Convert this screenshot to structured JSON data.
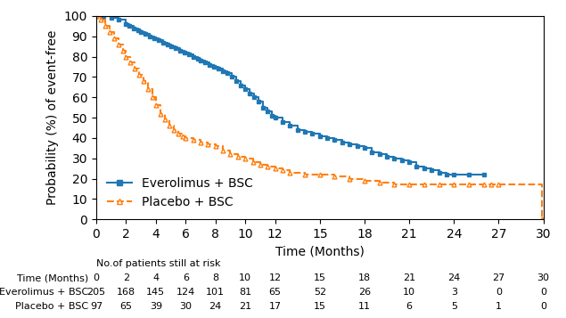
{
  "chart_data": {
    "type": "step",
    "xlabel": "Time (Months)",
    "ylabel": "Probability (%) of event-free",
    "xlim": [
      0,
      30
    ],
    "ylim": [
      0,
      100
    ],
    "xticks": [
      0,
      2,
      4,
      6,
      8,
      10,
      12,
      15,
      18,
      21,
      24,
      27,
      30
    ],
    "yticks": [
      0,
      10,
      20,
      30,
      40,
      50,
      60,
      70,
      80,
      90,
      100
    ],
    "legend": "lower left",
    "series": [
      {
        "name": "Everolimus + BSC",
        "marker": "square",
        "line_style": "solid",
        "x": [
          0,
          0.5,
          1.0,
          1.5,
          2.0,
          2.2,
          2.5,
          2.8,
          3.0,
          3.3,
          3.6,
          3.9,
          4.2,
          4.5,
          4.8,
          5.0,
          5.3,
          5.6,
          5.9,
          6.2,
          6.5,
          6.8,
          7.0,
          7.3,
          7.6,
          7.9,
          8.2,
          8.5,
          8.8,
          9.1,
          9.4,
          9.7,
          10.0,
          10.3,
          10.6,
          10.9,
          11.2,
          11.5,
          11.8,
          12.0,
          12.5,
          13.0,
          13.5,
          14.0,
          14.5,
          15.0,
          15.5,
          16.0,
          16.5,
          17.0,
          17.5,
          18.0,
          18.5,
          19.0,
          19.5,
          20.0,
          20.5,
          21.0,
          21.5,
          22.0,
          22.5,
          23.0,
          23.5,
          24.0,
          25.0,
          26.0
        ],
        "values": [
          100,
          100,
          99,
          98,
          96,
          95,
          94,
          93,
          92,
          91,
          90,
          89,
          88,
          87,
          86,
          85,
          84,
          83,
          82,
          81,
          80,
          79,
          78,
          77,
          76,
          75,
          74,
          73,
          72,
          70,
          68,
          66,
          64,
          62,
          60,
          58,
          55,
          53,
          51,
          50,
          48,
          46,
          44,
          43,
          42,
          41,
          40,
          39,
          38,
          37,
          36,
          35,
          33,
          32,
          31,
          30,
          29,
          28,
          26,
          25,
          24,
          23,
          22,
          22,
          22,
          22
        ]
      },
      {
        "name": "Placebo + BSC",
        "marker": "open triangle",
        "line_style": "dashed",
        "x": [
          0,
          0.3,
          0.6,
          0.9,
          1.2,
          1.5,
          1.8,
          2.0,
          2.3,
          2.6,
          2.9,
          3.2,
          3.5,
          3.8,
          4.0,
          4.3,
          4.6,
          4.9,
          5.2,
          5.5,
          5.8,
          6.0,
          6.5,
          7.0,
          7.5,
          8.0,
          8.5,
          9.0,
          9.5,
          10.0,
          10.5,
          11.0,
          11.5,
          12.0,
          12.5,
          13.0,
          14.0,
          15.0,
          16.0,
          17.0,
          18.0,
          19.0,
          20.0,
          21.0,
          22.0,
          23.0,
          24.0,
          25.0,
          26.0,
          26.5,
          27.0,
          29.9
        ],
        "values": [
          100,
          98,
          95,
          92,
          89,
          86,
          83,
          80,
          77,
          74,
          71,
          68,
          64,
          60,
          56,
          52,
          49,
          46,
          44,
          42,
          41,
          40,
          39,
          38,
          37,
          36,
          34,
          32,
          31,
          30,
          28,
          27,
          26,
          25,
          24,
          23,
          22,
          22,
          21,
          20,
          19,
          18,
          17,
          17,
          17,
          17,
          17,
          17,
          17,
          17,
          17,
          0
        ]
      }
    ],
    "risk_table": {
      "header": "No.of patients still at risk",
      "row_labels": [
        "Time (Months)",
        "Everolimus + BSC",
        "Placebo + BSC"
      ],
      "time": [
        0,
        2,
        4,
        6,
        8,
        10,
        12,
        15,
        18,
        21,
        24,
        27,
        30
      ],
      "rows": [
        [
          205,
          168,
          145,
          124,
          101,
          81,
          65,
          52,
          26,
          10,
          3,
          0,
          0
        ],
        [
          97,
          65,
          39,
          30,
          24,
          21,
          17,
          15,
          11,
          6,
          5,
          1,
          0
        ]
      ]
    }
  }
}
